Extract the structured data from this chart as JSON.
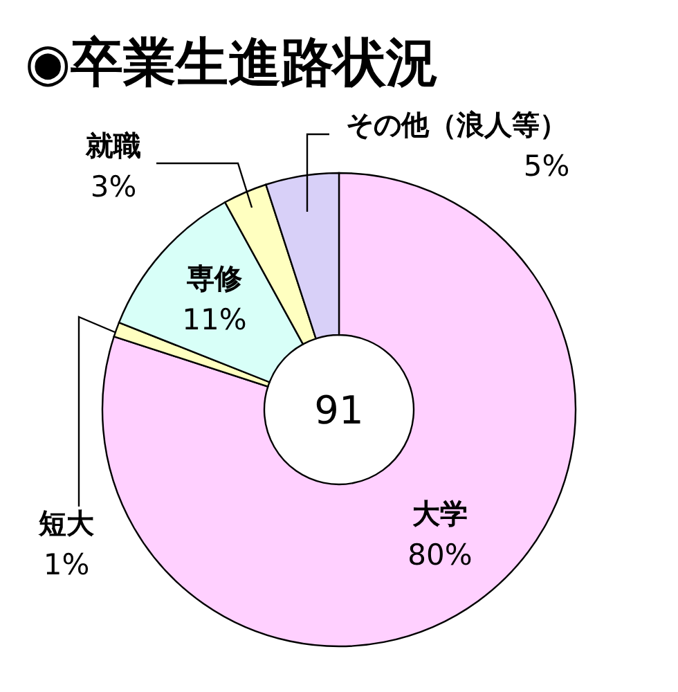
{
  "chart_data": {
    "type": "donut",
    "title": "◉卒業生進路状況",
    "categories": [
      "大学",
      "短大",
      "専修",
      "就職",
      "その他（浪人等）"
    ],
    "values": [
      80,
      1,
      11,
      3,
      5
    ],
    "value_labels": [
      "80%",
      "1%",
      "11%",
      "3%",
      "5%"
    ],
    "colors": [
      "#ffd0ff",
      "#ffffc0",
      "#d8fff8",
      "#ffffc0",
      "#d8d0f8"
    ],
    "annotations": [
      "91"
    ]
  }
}
